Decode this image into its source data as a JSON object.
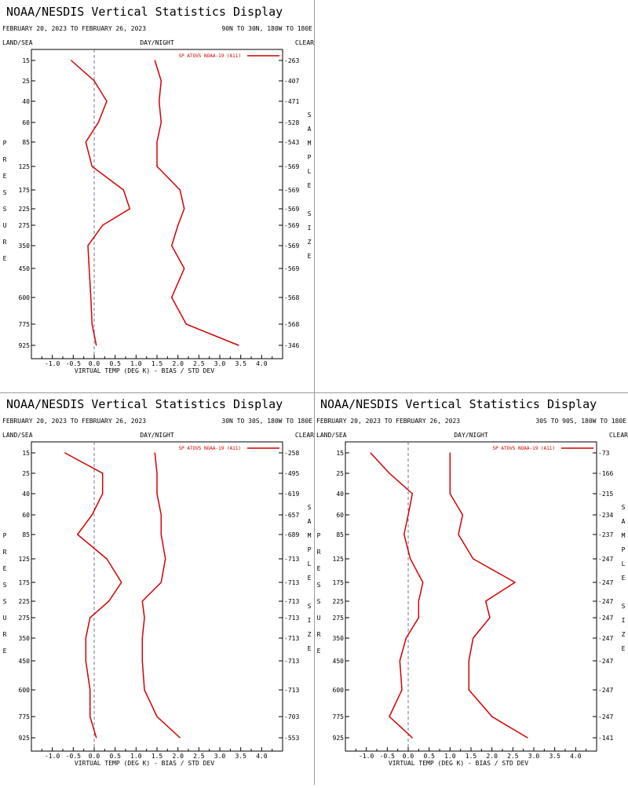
{
  "chart_data": [
    {
      "type": "line",
      "title": "NOAA/NESDIS Vertical Statistics Display",
      "date_range": "FEBRUARY 20, 2023 TO FEBRUARY 26, 2023",
      "region": "90N TO 30N, 180W TO 180E",
      "land_sea_label": "LAND/SEA",
      "day_night_label": "DAY/NIGHT",
      "clear_label": "CLEAR",
      "ylabel": "PRESSURE",
      "ylabel2": "SAMPLE SIZE",
      "xlabel": "VIRTUAL TEMP (DEG K) - BIAS / STD DEV",
      "xlim": [
        -1.5,
        4.5
      ],
      "xticks": [
        "-1.0",
        "-0.5",
        "0.0",
        "0.5",
        "1.0",
        "1.5",
        "2.0",
        "2.5",
        "3.0",
        "3.5",
        "4.0"
      ],
      "pressure_levels": [
        "15",
        "25",
        "40",
        "60",
        "85",
        "125",
        "175",
        "225",
        "275",
        "350",
        "450",
        "600",
        "775",
        "925"
      ],
      "sample_size": [
        "263",
        "407",
        "471",
        "528",
        "543",
        "569",
        "569",
        "569",
        "569",
        "569",
        "569",
        "568",
        "568",
        "346"
      ],
      "legend": "SP ATOVS NOAA-19 (A11)",
      "line_color": "#d40000",
      "series": [
        {
          "role": "bias",
          "values": [
            -0.55,
            0.0,
            0.3,
            0.1,
            -0.2,
            -0.05,
            0.7,
            0.85,
            0.2,
            -0.15,
            -0.12,
            -0.08,
            -0.05,
            0.05
          ]
        },
        {
          "role": "std_dev",
          "values": [
            1.45,
            1.6,
            1.55,
            1.6,
            1.5,
            1.5,
            2.05,
            2.15,
            2.0,
            1.85,
            2.15,
            1.85,
            2.2,
            3.45
          ]
        }
      ]
    },
    {
      "type": "line",
      "title": "NOAA/NESDIS Vertical Statistics Display",
      "date_range": "FEBRUARY 20, 2023 TO FEBRUARY 26, 2023",
      "region": "30N TO 30S, 180W TO 180E",
      "land_sea_label": "LAND/SEA",
      "day_night_label": "DAY/NIGHT",
      "clear_label": "CLEAR",
      "ylabel": "PRESSURE",
      "ylabel2": "SAMPLE SIZE",
      "xlabel": "VIRTUAL TEMP (DEG K) - BIAS / STD DEV",
      "xlim": [
        -1.5,
        4.5
      ],
      "xticks": [
        "-1.0",
        "-0.5",
        "0.0",
        "0.5",
        "1.0",
        "1.5",
        "2.0",
        "2.5",
        "3.0",
        "3.5",
        "4.0"
      ],
      "pressure_levels": [
        "15",
        "25",
        "40",
        "60",
        "85",
        "125",
        "175",
        "225",
        "275",
        "350",
        "450",
        "600",
        "775",
        "925"
      ],
      "sample_size": [
        "258",
        "495",
        "619",
        "657",
        "689",
        "713",
        "713",
        "713",
        "713",
        "713",
        "713",
        "713",
        "703",
        "553"
      ],
      "legend": "SP ATOVS NOAA-19 (A11)",
      "line_color": "#d40000",
      "series": [
        {
          "role": "bias",
          "values": [
            -0.7,
            0.2,
            0.2,
            -0.05,
            -0.4,
            0.3,
            0.65,
            0.35,
            -0.1,
            -0.2,
            -0.2,
            -0.1,
            -0.1,
            0.05
          ]
        },
        {
          "role": "std_dev",
          "values": [
            1.45,
            1.5,
            1.5,
            1.6,
            1.6,
            1.7,
            1.6,
            1.15,
            1.2,
            1.15,
            1.15,
            1.2,
            1.5,
            2.05
          ]
        }
      ]
    },
    {
      "type": "line",
      "title": "NOAA/NESDIS Vertical Statistics Display",
      "date_range": "FEBRUARY 20, 2023 TO FEBRUARY 26, 2023",
      "region": "30S TO 90S, 180W TO 180E",
      "land_sea_label": "LAND/SEA",
      "day_night_label": "DAY/NIGHT",
      "clear_label": "CLEAR",
      "ylabel": "PRESSURE",
      "ylabel2": "SAMPLE SIZE",
      "xlabel": "VIRTUAL TEMP (DEG K) - BIAS / STD DEV",
      "xlim": [
        -1.5,
        4.5
      ],
      "xticks": [
        "-1.0",
        "-0.5",
        "0.0",
        "0.5",
        "1.0",
        "1.5",
        "2.0",
        "2.5",
        "3.0",
        "3.5",
        "4.0"
      ],
      "pressure_levels": [
        "15",
        "25",
        "40",
        "60",
        "85",
        "125",
        "175",
        "225",
        "275",
        "350",
        "450",
        "600",
        "775",
        "925"
      ],
      "sample_size": [
        "73",
        "166",
        "215",
        "234",
        "237",
        "247",
        "247",
        "247",
        "247",
        "247",
        "247",
        "247",
        "247",
        "141"
      ],
      "legend": "SP ATOVS NOAA-19 (A11)",
      "line_color": "#d40000",
      "series": [
        {
          "role": "bias",
          "values": [
            -0.9,
            -0.45,
            0.1,
            0.0,
            -0.1,
            0.05,
            0.35,
            0.25,
            0.25,
            -0.05,
            -0.2,
            -0.15,
            -0.45,
            0.1
          ]
        },
        {
          "role": "std_dev",
          "values": [
            1.0,
            1.0,
            1.0,
            1.3,
            1.2,
            1.55,
            2.55,
            1.85,
            1.95,
            1.55,
            1.45,
            1.45,
            2.0,
            2.85
          ]
        }
      ]
    }
  ]
}
